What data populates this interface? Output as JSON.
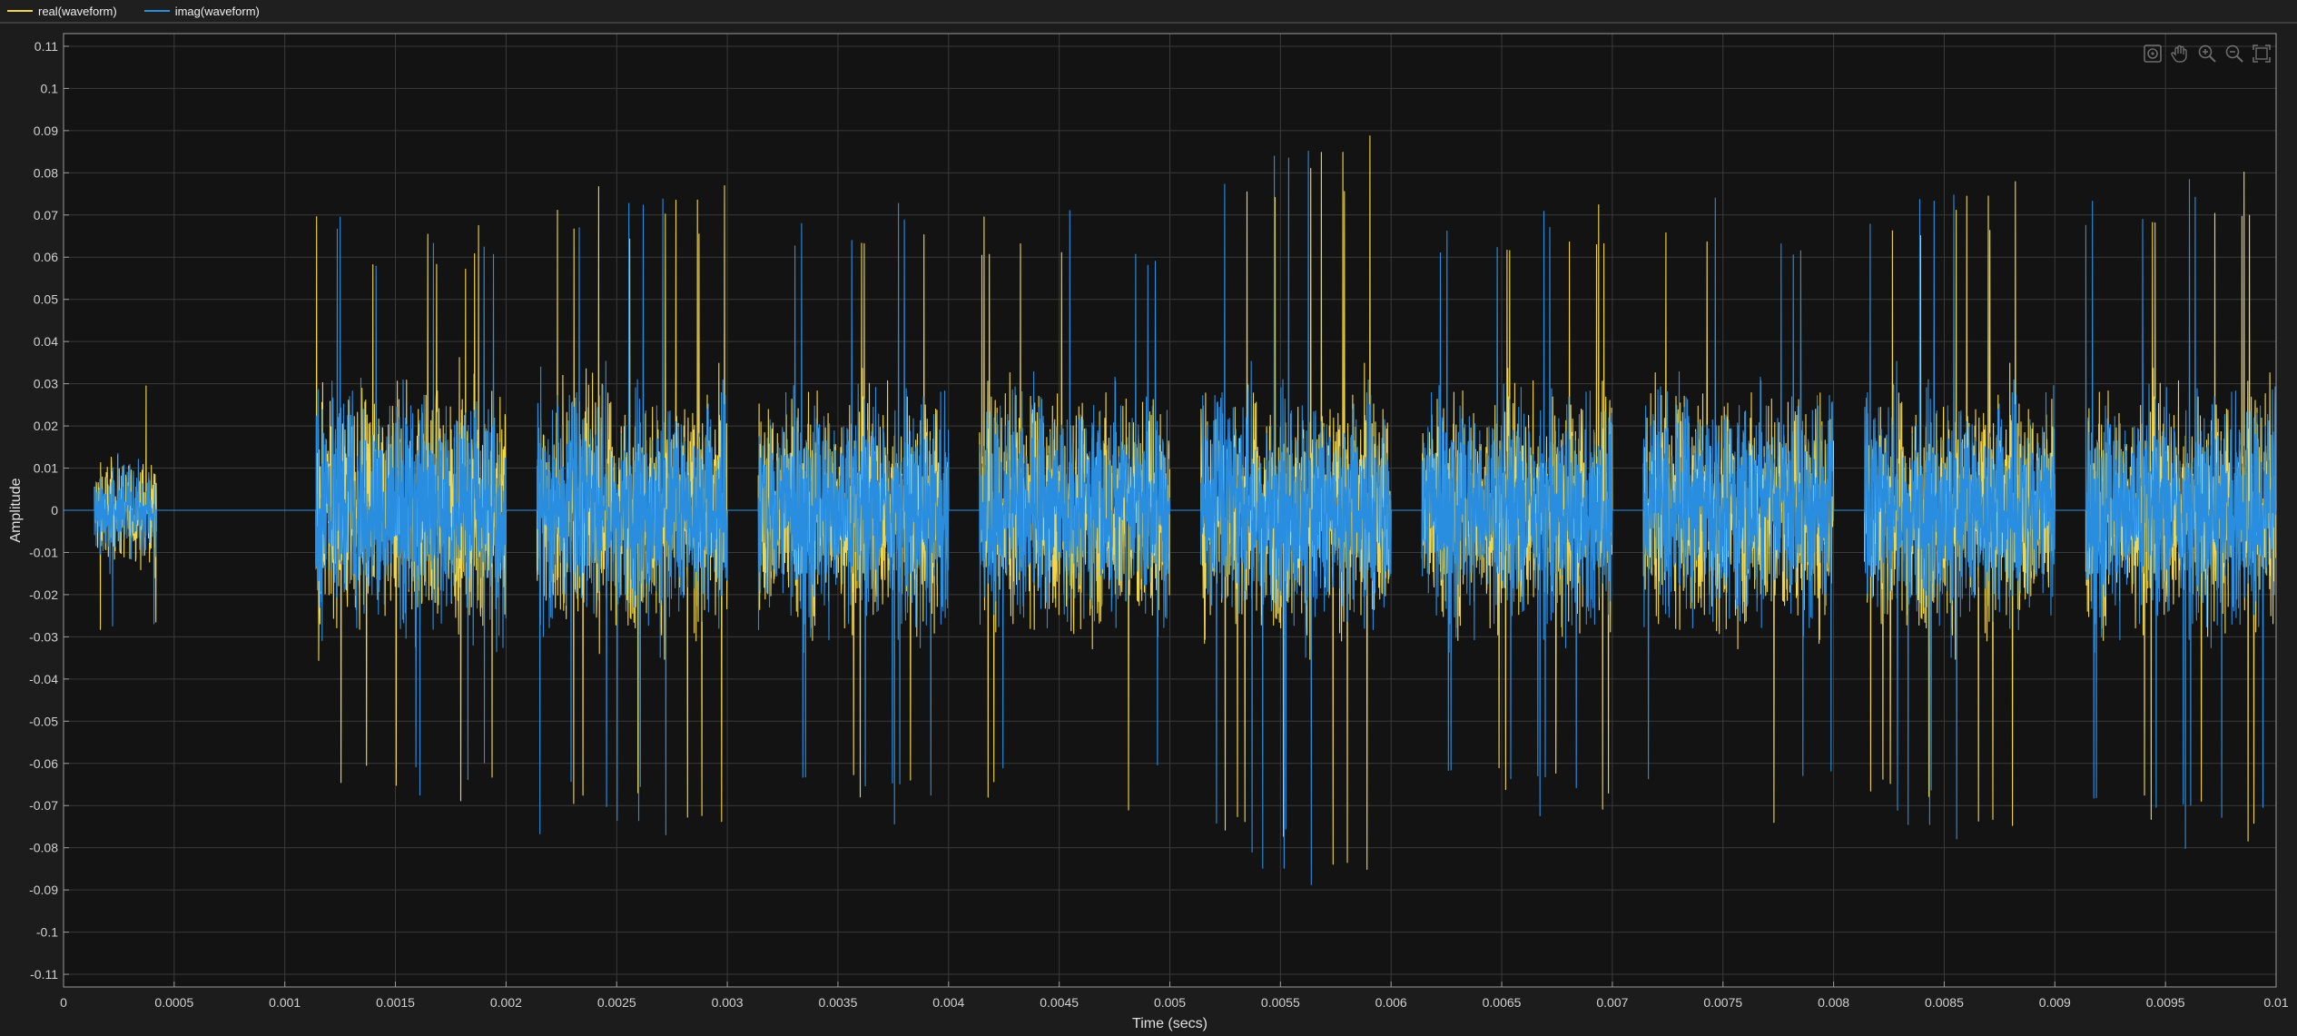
{
  "legend": {
    "items": [
      {
        "label": "real(waveform)",
        "color": "#f2d74a"
      },
      {
        "label": "imag(waveform)",
        "color": "#2a8ee0"
      }
    ]
  },
  "toolbar": {
    "icons": [
      "restore-view-icon",
      "pan-icon",
      "zoom-in-icon",
      "zoom-out-icon",
      "fit-to-view-icon"
    ]
  },
  "colors": {
    "background": "#1c1c1c",
    "plot_background": "#131313",
    "grid": "#3a3a3a",
    "axis": "#9a9a9a",
    "real": "#f2d74a",
    "imag": "#2a8ee0"
  },
  "chart_data": {
    "type": "line",
    "title": "",
    "xlabel": "Time (secs)",
    "ylabel": "Amplitude",
    "xlim": [
      0,
      0.01
    ],
    "ylim": [
      -0.113,
      0.113
    ],
    "grid": true,
    "legend_position": "top-left",
    "x_ticks": [
      0,
      0.0005,
      0.001,
      0.0015,
      0.002,
      0.0025,
      0.003,
      0.0035,
      0.004,
      0.0045,
      0.005,
      0.0055,
      0.006,
      0.0065,
      0.007,
      0.0075,
      0.008,
      0.0085,
      0.009,
      0.0095,
      0.01
    ],
    "x_tick_labels": [
      "0",
      "0.0005",
      "0.001",
      "0.0015",
      "0.002",
      "0.0025",
      "0.003",
      "0.0035",
      "0.004",
      "0.0045",
      "0.005",
      "0.0055",
      "0.006",
      "0.0065",
      "0.007",
      "0.0075",
      "0.008",
      "0.0085",
      "0.009",
      "0.0095",
      "0.01"
    ],
    "y_ticks": [
      0.11,
      0.1,
      0.09,
      0.08,
      0.07,
      0.06,
      0.05,
      0.04,
      0.03,
      0.02,
      0.01,
      0,
      -0.01,
      -0.02,
      -0.03,
      -0.04,
      -0.05,
      -0.06,
      -0.07,
      -0.08,
      -0.09,
      -0.1,
      -0.11
    ],
    "y_tick_labels": [
      "0.11",
      "0.1",
      "0.09",
      "0.08",
      "0.07",
      "0.06",
      "0.05",
      "0.04",
      "0.03",
      "0.02",
      "0.01",
      "0",
      "-0.01",
      "-0.02",
      "-0.03",
      "-0.04",
      "-0.05",
      "-0.06",
      "-0.07",
      "-0.08",
      "-0.09",
      "-0.1",
      "-0.11"
    ],
    "bursts": [
      {
        "x_start": 0.00014,
        "x_end": 0.00042,
        "typical_amplitude": 0.022,
        "peak_amplitude": 0.03
      },
      {
        "x_start": 0.00114,
        "x_end": 0.002,
        "typical_amplitude": 0.05,
        "peak_amplitude": 0.07
      },
      {
        "x_start": 0.00214,
        "x_end": 0.003,
        "typical_amplitude": 0.05,
        "peak_amplitude": 0.078
      },
      {
        "x_start": 0.00314,
        "x_end": 0.004,
        "typical_amplitude": 0.05,
        "peak_amplitude": 0.077
      },
      {
        "x_start": 0.00414,
        "x_end": 0.005,
        "typical_amplitude": 0.05,
        "peak_amplitude": 0.072
      },
      {
        "x_start": 0.00514,
        "x_end": 0.006,
        "typical_amplitude": 0.05,
        "peak_amplitude": 0.09
      },
      {
        "x_start": 0.00614,
        "x_end": 0.007,
        "typical_amplitude": 0.05,
        "peak_amplitude": 0.075
      },
      {
        "x_start": 0.00714,
        "x_end": 0.008,
        "typical_amplitude": 0.05,
        "peak_amplitude": 0.075
      },
      {
        "x_start": 0.00814,
        "x_end": 0.009,
        "typical_amplitude": 0.05,
        "peak_amplitude": 0.079
      },
      {
        "x_start": 0.00914,
        "x_end": 0.01,
        "typical_amplitude": 0.05,
        "peak_amplitude": 0.083
      }
    ],
    "series": [
      {
        "name": "real(waveform)",
        "color": "#f2d74a"
      },
      {
        "name": "imag(waveform)",
        "color": "#2a8ee0"
      }
    ]
  }
}
